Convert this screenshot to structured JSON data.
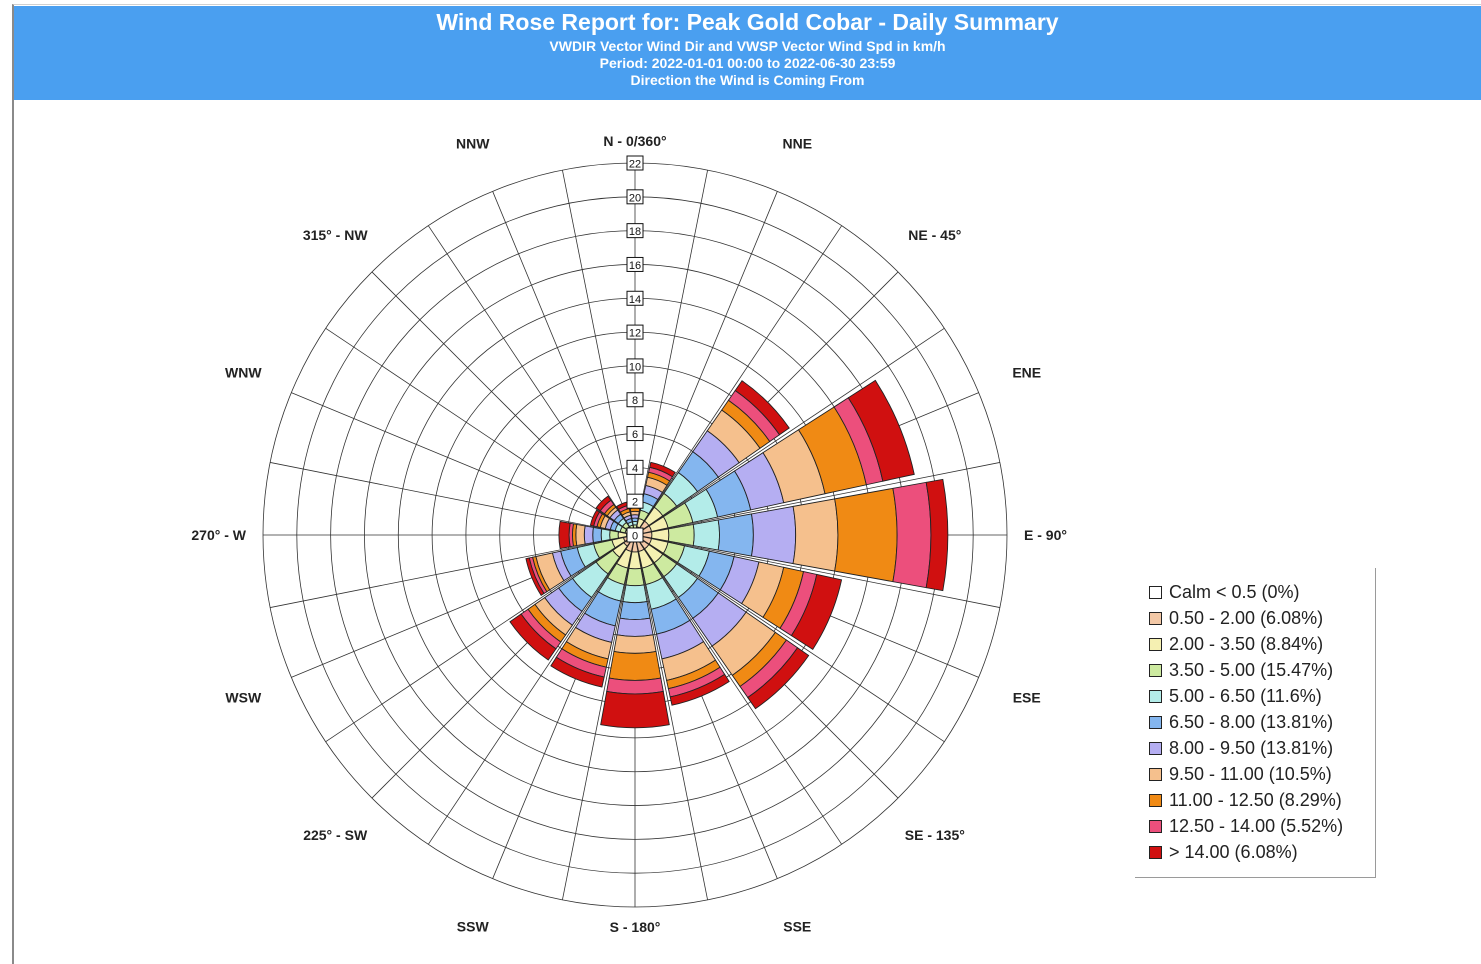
{
  "header": {
    "title": "Wind Rose Report for: Peak Gold Cobar - Daily Summary",
    "subtitle_line1": "VWDIR Vector Wind Dir and VWSP Vector Wind Spd in km/h",
    "subtitle_line2": "Period: 2022-01-01 00:00 to 2022-06-30 23:59",
    "subtitle_line3": "Direction the Wind is Coming From"
  },
  "chart_data": {
    "type": "wind-rose",
    "radial_unit": "percent frequency",
    "radial_max": 22,
    "radial_ticks": [
      0,
      2,
      4,
      6,
      8,
      10,
      12,
      14,
      16,
      18,
      20,
      22
    ],
    "direction_labels": [
      "N - 0/360°",
      "NNE",
      "NE - 45°",
      "ENE",
      "E - 90°",
      "ESE",
      "SE - 135°",
      "SSE",
      "S - 180°",
      "SSW",
      "225° - SW",
      "WSW",
      "270° - W",
      "WNW",
      "315° - NW",
      "NNW"
    ],
    "direction_angles": [
      0,
      22.5,
      45,
      67.5,
      90,
      112.5,
      135,
      157.5,
      180,
      202.5,
      225,
      247.5,
      270,
      292.5,
      315,
      337.5
    ],
    "speed_bins": [
      {
        "label": "Calm < 0.5 (0%)",
        "color": "#ffffff"
      },
      {
        "label": "0.50 - 2.00 (6.08%)",
        "color": "#f3c8a6"
      },
      {
        "label": "2.00 - 3.50 (8.84%)",
        "color": "#f5f0b2"
      },
      {
        "label": "3.50 - 5.00 (15.47%)",
        "color": "#cdeaa0"
      },
      {
        "label": "5.00 - 6.50 (11.6%)",
        "color": "#b3ece9"
      },
      {
        "label": "6.50 - 8.00 (13.81%)",
        "color": "#84b6ef"
      },
      {
        "label": "8.00 - 9.50 (13.81%)",
        "color": "#b5aef2"
      },
      {
        "label": "9.50 - 11.00 (10.5%)",
        "color": "#f5c08d"
      },
      {
        "label": "11.00 - 12.50 (8.29%)",
        "color": "#f08a14"
      },
      {
        "label": "12.50 - 14.00 (5.52%)",
        "color": "#ec4f7c"
      },
      {
        "label": "> 14.00 (6.08%)",
        "color": "#d01010"
      }
    ],
    "sectors": [
      {
        "dir": "N",
        "cumulative": [
          0,
          0.2,
          0.4,
          0.6,
          0.8,
          1.0,
          1.2,
          1.4,
          1.6,
          1.8,
          2.0
        ]
      },
      {
        "dir": "NNE",
        "cumulative": [
          0,
          0.5,
          1.0,
          1.5,
          2.0,
          2.5,
          3.0,
          3.5,
          3.8,
          4.1,
          4.4
        ]
      },
      {
        "dir": "NE",
        "cumulative": [
          0,
          1.0,
          2.0,
          3.0,
          4.5,
          6.0,
          7.5,
          9.0,
          9.7,
          10.4,
          11.1
        ]
      },
      {
        "dir": "ENE",
        "cumulative": [
          0,
          1.0,
          2.0,
          3.5,
          5.0,
          7.0,
          9.0,
          11.5,
          14.0,
          15.0,
          16.9
        ]
      },
      {
        "dir": "E",
        "cumulative": [
          0,
          1.0,
          2.0,
          3.5,
          5.0,
          7.0,
          9.5,
          12.0,
          15.5,
          17.5,
          18.5
        ]
      },
      {
        "dir": "ESE",
        "cumulative": [
          0,
          1.0,
          2.0,
          3.0,
          4.5,
          6.0,
          7.5,
          9.0,
          10.2,
          11.0,
          12.5
        ]
      },
      {
        "dir": "SE",
        "cumulative": [
          0,
          1.0,
          2.0,
          3.0,
          4.5,
          6.0,
          8.0,
          10.1,
          10.9,
          11.7,
          12.5
        ]
      },
      {
        "dir": "SSE",
        "cumulative": [
          0,
          1.0,
          2.0,
          3.0,
          4.5,
          6.0,
          7.5,
          8.8,
          9.3,
          9.8,
          10.3
        ]
      },
      {
        "dir": "S",
        "cumulative": [
          0,
          1.0,
          2.0,
          3.0,
          4.0,
          5.0,
          6.0,
          7.0,
          8.6,
          9.4,
          11.4
        ]
      },
      {
        "dir": "SSW",
        "cumulative": [
          0,
          1.0,
          2.0,
          3.0,
          4.0,
          5.5,
          6.5,
          7.5,
          8.0,
          8.6,
          9.2
        ]
      },
      {
        "dir": "SW",
        "cumulative": [
          0,
          0.8,
          1.6,
          2.8,
          4.5,
          5.5,
          6.5,
          7.2,
          7.7,
          8.2,
          9.0
        ]
      },
      {
        "dir": "WSW",
        "cumulative": [
          0,
          0.7,
          1.4,
          2.5,
          3.5,
          4.5,
          5.0,
          6.0,
          6.2,
          6.4,
          6.6
        ]
      },
      {
        "dir": "W",
        "cumulative": [
          0,
          0.5,
          1.0,
          1.5,
          2.0,
          2.5,
          3.0,
          3.5,
          3.7,
          3.9,
          4.5
        ]
      },
      {
        "dir": "WNW",
        "cumulative": [
          0,
          0.3,
          0.6,
          0.9,
          1.2,
          1.5,
          1.8,
          2.1,
          2.3,
          2.5,
          2.7
        ]
      },
      {
        "dir": "NW",
        "cumulative": [
          0,
          0.3,
          0.6,
          0.9,
          1.2,
          1.5,
          1.8,
          2.0,
          2.2,
          2.5,
          2.8
        ]
      },
      {
        "dir": "NNW",
        "cumulative": [
          0,
          0.2,
          0.4,
          0.6,
          0.8,
          1.0,
          1.2,
          1.4,
          1.6,
          1.8,
          2.0
        ]
      }
    ]
  }
}
